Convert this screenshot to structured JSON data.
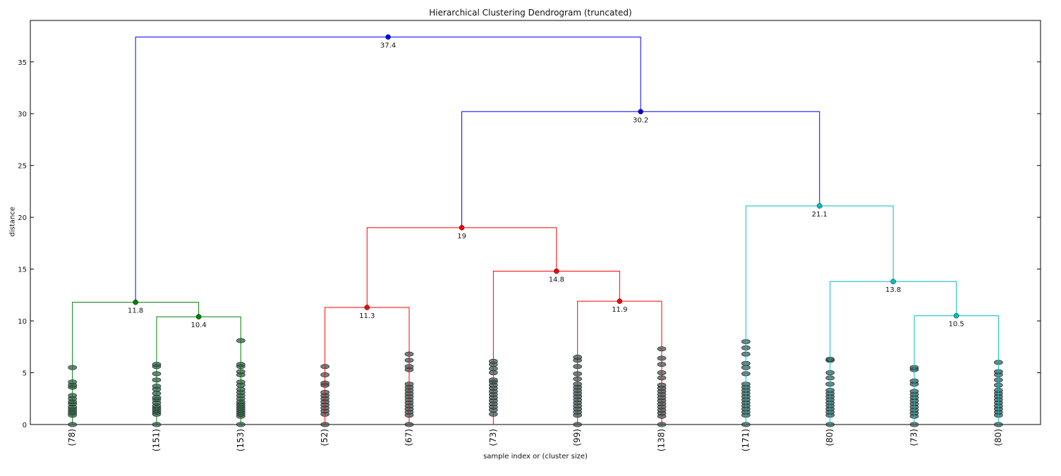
{
  "chart_data": {
    "type": "dendrogram",
    "title": "Hierarchical Clustering Dendrogram (truncated)",
    "xlabel": "sample index or (cluster size)",
    "ylabel": "distance",
    "ylim": [
      0,
      39
    ],
    "yticks": [
      0,
      5,
      10,
      15,
      20,
      25,
      30,
      35
    ],
    "leaves": [
      "(78)",
      "(151)",
      "(153)",
      "(52)",
      "(67)",
      "(73)",
      "(99)",
      "(138)",
      "(171)",
      "(80)",
      "(73)",
      "(80)"
    ],
    "colors": {
      "green": "#008000",
      "red": "#ff0000",
      "cyan": "#00bfbf",
      "blue": "#0000ff",
      "dots": "#3a5a5a"
    },
    "merges": [
      {
        "left": 1,
        "right": 2,
        "height": 10.4,
        "label": "10.4",
        "color": "green"
      },
      {
        "left": 0,
        "right": 1.5,
        "height": 11.8,
        "label": "11.8",
        "color": "green"
      },
      {
        "left": 3,
        "right": 4,
        "height": 11.3,
        "label": "11.3",
        "color": "red"
      },
      {
        "left": 6,
        "right": 7,
        "height": 11.9,
        "label": "11.9",
        "color": "red"
      },
      {
        "left": 5,
        "right": 6.5,
        "height": 14.8,
        "label": "14.8",
        "color": "red"
      },
      {
        "left": 3.5,
        "right": 5.75,
        "height": 19.0,
        "label": "19",
        "color": "red"
      },
      {
        "left": 10,
        "right": 11,
        "height": 10.5,
        "label": "10.5",
        "color": "cyan"
      },
      {
        "left": 9,
        "right": 10.5,
        "height": 13.8,
        "label": "13.8",
        "color": "cyan"
      },
      {
        "left": 8,
        "right": 9.75,
        "height": 21.1,
        "label": "21.1",
        "color": "cyan"
      },
      {
        "left": 4.625,
        "right": 8.875,
        "height": 30.2,
        "label": "30.2",
        "color": "blue"
      },
      {
        "left": 0.75,
        "right": 6.75,
        "height": 37.4,
        "label": "37.4",
        "color": "blue"
      }
    ],
    "leaf_points": [
      [
        0,
        0.9,
        1.1,
        1.3,
        1.5,
        1.7,
        2.0,
        2.2,
        2.5,
        2.8,
        3.6,
        3.8,
        4.1,
        5.5
      ],
      [
        0,
        1.0,
        1.2,
        1.4,
        1.6,
        1.8,
        2.1,
        2.4,
        2.6,
        3.0,
        3.4,
        3.7,
        4.3,
        4.9,
        5.6,
        5.8
      ],
      [
        0,
        0.8,
        1.0,
        1.2,
        1.4,
        1.6,
        1.8,
        2.0,
        2.2,
        2.5,
        2.8,
        3.1,
        3.4,
        3.8,
        4.1,
        4.8,
        5.1,
        5.6,
        5.8,
        8.1
      ],
      [
        0,
        1.0,
        1.3,
        1.6,
        1.9,
        2.2,
        2.5,
        2.8,
        3.1,
        3.8,
        4.0,
        4.8,
        5.6
      ],
      [
        0,
        0.9,
        1.2,
        1.5,
        1.8,
        2.1,
        2.4,
        2.7,
        3.0,
        3.3,
        3.6,
        3.9,
        5.3,
        5.6,
        6.2,
        6.8
      ],
      [
        1.0,
        1.4,
        1.7,
        2.0,
        2.3,
        2.6,
        2.9,
        3.2,
        3.5,
        3.8,
        4.1,
        4.3,
        5.0,
        5.4,
        5.8,
        6.1
      ],
      [
        0,
        0.9,
        1.2,
        1.5,
        1.8,
        2.1,
        2.4,
        2.7,
        3.0,
        3.3,
        3.6,
        3.9,
        4.4,
        4.9,
        5.6,
        6.2,
        6.5
      ],
      [
        0,
        0.8,
        1.1,
        1.4,
        1.7,
        2.0,
        2.3,
        2.6,
        2.9,
        3.2,
        3.5,
        3.8,
        4.5,
        5.0,
        5.8,
        6.4,
        7.3
      ],
      [
        0,
        0.9,
        1.2,
        1.5,
        1.8,
        2.1,
        2.4,
        2.7,
        3.0,
        3.3,
        3.6,
        3.9,
        4.9,
        5.5,
        5.9,
        6.8,
        7.4,
        8.0
      ],
      [
        0,
        0.9,
        1.2,
        1.5,
        1.8,
        2.1,
        2.4,
        2.7,
        3.0,
        3.3,
        3.9,
        4.5,
        5.0,
        6.2,
        6.3
      ],
      [
        0,
        0.8,
        1.1,
        1.4,
        1.7,
        2.0,
        2.3,
        2.6,
        2.9,
        3.2,
        3.9,
        4.2,
        5.3,
        5.5
      ],
      [
        0,
        0.9,
        1.2,
        1.5,
        1.8,
        2.1,
        2.4,
        2.7,
        3.0,
        3.3,
        3.8,
        4.3,
        4.8,
        5.1,
        6.0
      ]
    ]
  }
}
